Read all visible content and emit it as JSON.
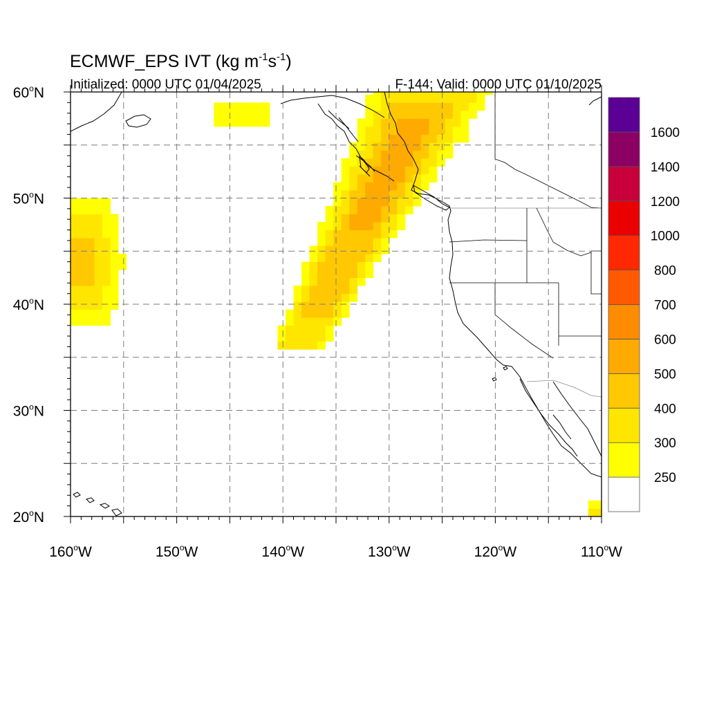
{
  "title": {
    "prefix": "ECMWF_EPS IVT (kg m",
    "sup1": "-1",
    "mid": "s",
    "sup2": "-1",
    "suffix": ")"
  },
  "subtitle_left": "Initialized: 0000 UTC 01/04/2025",
  "subtitle_right": "F-144: Valid: 0000 UTC 01/10/2025",
  "lat_labels": [
    {
      "value": 60,
      "num": "60",
      "deg": "o",
      "hemi": "N"
    },
    {
      "value": 50,
      "num": "50",
      "deg": "o",
      "hemi": "N"
    },
    {
      "value": 40,
      "num": "40",
      "deg": "o",
      "hemi": "N"
    },
    {
      "value": 30,
      "num": "30",
      "deg": "o",
      "hemi": "N"
    },
    {
      "value": 20,
      "num": "20",
      "deg": "o",
      "hemi": "N"
    }
  ],
  "lon_labels": [
    {
      "value": -160,
      "num": "160",
      "deg": "o",
      "hemi": "W"
    },
    {
      "value": -150,
      "num": "150",
      "deg": "o",
      "hemi": "W"
    },
    {
      "value": -140,
      "num": "140",
      "deg": "o",
      "hemi": "W"
    },
    {
      "value": -130,
      "num": "130",
      "deg": "o",
      "hemi": "W"
    },
    {
      "value": -120,
      "num": "120",
      "deg": "o",
      "hemi": "W"
    },
    {
      "value": -110,
      "num": "110",
      "deg": "o",
      "hemi": "W"
    }
  ],
  "map_extent": {
    "lon_min": -160,
    "lon_max": -110,
    "lat_min": 20,
    "lat_max": 60
  },
  "colorbar": {
    "levels": [
      "250",
      "300",
      "400",
      "500",
      "600",
      "700",
      "800",
      "1000",
      "1200",
      "1400",
      "1600"
    ],
    "colors": [
      "#ffffff",
      "#ffff00",
      "#ffe600",
      "#ffc800",
      "#ffaa00",
      "#ff8c00",
      "#ff5a00",
      "#ff2800",
      "#eb0000",
      "#c8003c",
      "#8c0064",
      "#5a0096"
    ]
  },
  "ivt_features": [
    {
      "name": "main-plume",
      "peak_band": 5
    },
    {
      "name": "west-edge-plume",
      "peak_band": 4
    },
    {
      "name": "gulf-of-alaska-patch",
      "peak_band": 1
    },
    {
      "name": "mexico-corner-patch",
      "peak_band": 2
    }
  ]
}
